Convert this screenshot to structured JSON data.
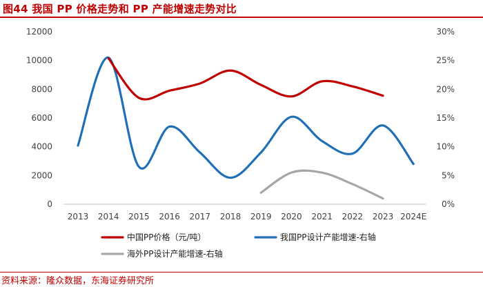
{
  "header": {
    "title": "图44 我国 PP 价格走势和 PP 产能增速走势对比"
  },
  "footer": {
    "source": "资料来源：隆众数据，东海证券研究所"
  },
  "colors": {
    "price": "#c00000",
    "domestic": "#1f6fb8",
    "overseas": "#a6a6a6",
    "axis": "#bfbfbf",
    "text": "#404040"
  },
  "chart_data": {
    "type": "line",
    "title": "",
    "categories": [
      "2013",
      "2014",
      "2015",
      "2016",
      "2017",
      "2018",
      "2019",
      "2020",
      "2021",
      "2022",
      "2023",
      "2024E"
    ],
    "y_left": {
      "min": 0,
      "max": 12000,
      "step": 2000,
      "tick_labels": [
        "0",
        "2000",
        "4000",
        "6000",
        "8000",
        "10000",
        "12000"
      ]
    },
    "y_right": {
      "min": 0,
      "max": 0.3,
      "step": 0.05,
      "tick_labels": [
        "0%",
        "5%",
        "10%",
        "15%",
        "20%",
        "25%",
        "30%"
      ]
    },
    "series": [
      {
        "name": "中国PP价格（元/吨）",
        "axis": "left",
        "values": [
          null,
          10150,
          7400,
          7900,
          8400,
          9300,
          8300,
          7500,
          8550,
          8200,
          7550,
          null
        ]
      },
      {
        "name": "我国PP设计产能增速-右轴",
        "axis": "right",
        "values": [
          0.102,
          0.255,
          0.065,
          0.135,
          0.09,
          0.046,
          0.09,
          0.152,
          0.11,
          0.088,
          0.137,
          0.07
        ]
      },
      {
        "name": "海外PP设计产能增速-右轴",
        "axis": "right",
        "values": [
          null,
          null,
          null,
          null,
          null,
          null,
          0.02,
          0.055,
          0.055,
          0.035,
          0.01,
          null
        ]
      }
    ],
    "legend_position": "bottom"
  }
}
